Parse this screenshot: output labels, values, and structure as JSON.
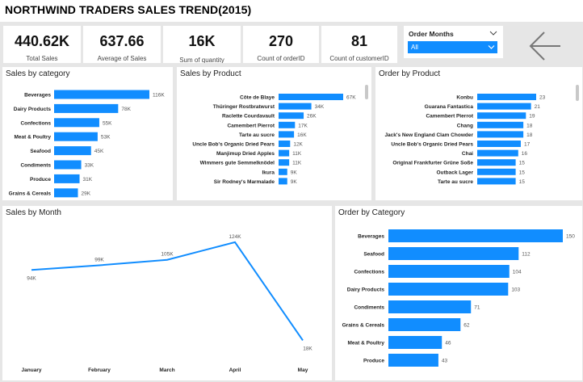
{
  "title": "NORTHWIND TRADERS SALES TREND(2015)",
  "kpis": [
    {
      "value": "440.62K",
      "label": "Total Sales"
    },
    {
      "value": "637.66",
      "label": "Average of Sales"
    },
    {
      "value": "16K",
      "label": "Sum of quantity"
    },
    {
      "value": "270",
      "label": "Count of orderID"
    },
    {
      "value": "81",
      "label": "Count of customerID"
    }
  ],
  "slicer": {
    "title": "Order Months",
    "selected": "All"
  },
  "colors": {
    "bar": "#118dff",
    "background": "#e6e6e6"
  },
  "sales_by_category": {
    "title": "Sales by category",
    "chart_data": {
      "type": "bar",
      "categories": [
        "Beverages",
        "Dairy Products",
        "Confections",
        "Meat & Poultry",
        "Seafood",
        "Condiments",
        "Produce",
        "Grains & Cereals"
      ],
      "values": [
        116,
        78,
        55,
        53,
        45,
        33,
        31,
        29
      ],
      "value_labels": [
        "116K",
        "78K",
        "55K",
        "53K",
        "45K",
        "33K",
        "31K",
        "29K"
      ],
      "orientation": "horizontal"
    }
  },
  "sales_by_product": {
    "title": "Sales by Product",
    "chart_data": {
      "type": "bar",
      "categories": [
        "Côte de Blaye",
        "Thüringer Rostbratwurst",
        "Raclette Courdavault",
        "Camembert Pierrot",
        "Tarte au sucre",
        "Uncle Bob's Organic Dried Pears",
        "Manjimup Dried Apples",
        "Wimmers gute Semmelknödel",
        "Ikura",
        "Sir Rodney's Marmalade"
      ],
      "values": [
        67,
        34,
        26,
        17,
        16,
        12,
        11,
        11,
        9,
        9
      ],
      "value_labels": [
        "67K",
        "34K",
        "26K",
        "17K",
        "16K",
        "12K",
        "11K",
        "11K",
        "9K",
        "9K"
      ],
      "orientation": "horizontal"
    }
  },
  "order_by_product": {
    "title": "Order by Product",
    "chart_data": {
      "type": "bar",
      "categories": [
        "Konbu",
        "Guarana Fantastica",
        "Camembert Pierrot",
        "Chang",
        "Jack's New England Clam Chowder",
        "Uncle Bob's Organic Dried Pears",
        "Chai",
        "Original Frankfurter Grüne Soße",
        "Outback Lager",
        "Tarte au sucre"
      ],
      "values": [
        23,
        21,
        19,
        18,
        18,
        17,
        16,
        15,
        15,
        15
      ],
      "value_labels": [
        "23",
        "21",
        "19",
        "18",
        "18",
        "17",
        "16",
        "15",
        "15",
        "15"
      ],
      "orientation": "horizontal"
    }
  },
  "sales_by_month": {
    "title": "Sales by Month",
    "chart_data": {
      "type": "line",
      "categories": [
        "January",
        "February",
        "March",
        "April",
        "May"
      ],
      "values": [
        94,
        99,
        105,
        124,
        18
      ],
      "value_labels": [
        "94K",
        "99K",
        "105K",
        "124K",
        "18K"
      ]
    }
  },
  "order_by_category": {
    "title": "Order by Category",
    "chart_data": {
      "type": "bar",
      "categories": [
        "Beverages",
        "Seafood",
        "Confections",
        "Dairy Products",
        "Condiments",
        "Grains & Cereals",
        "Meat & Poultry",
        "Produce"
      ],
      "values": [
        150,
        112,
        104,
        103,
        71,
        62,
        46,
        43
      ],
      "value_labels": [
        "150",
        "112",
        "104",
        "103",
        "71",
        "62",
        "46",
        "43"
      ],
      "orientation": "horizontal"
    }
  }
}
